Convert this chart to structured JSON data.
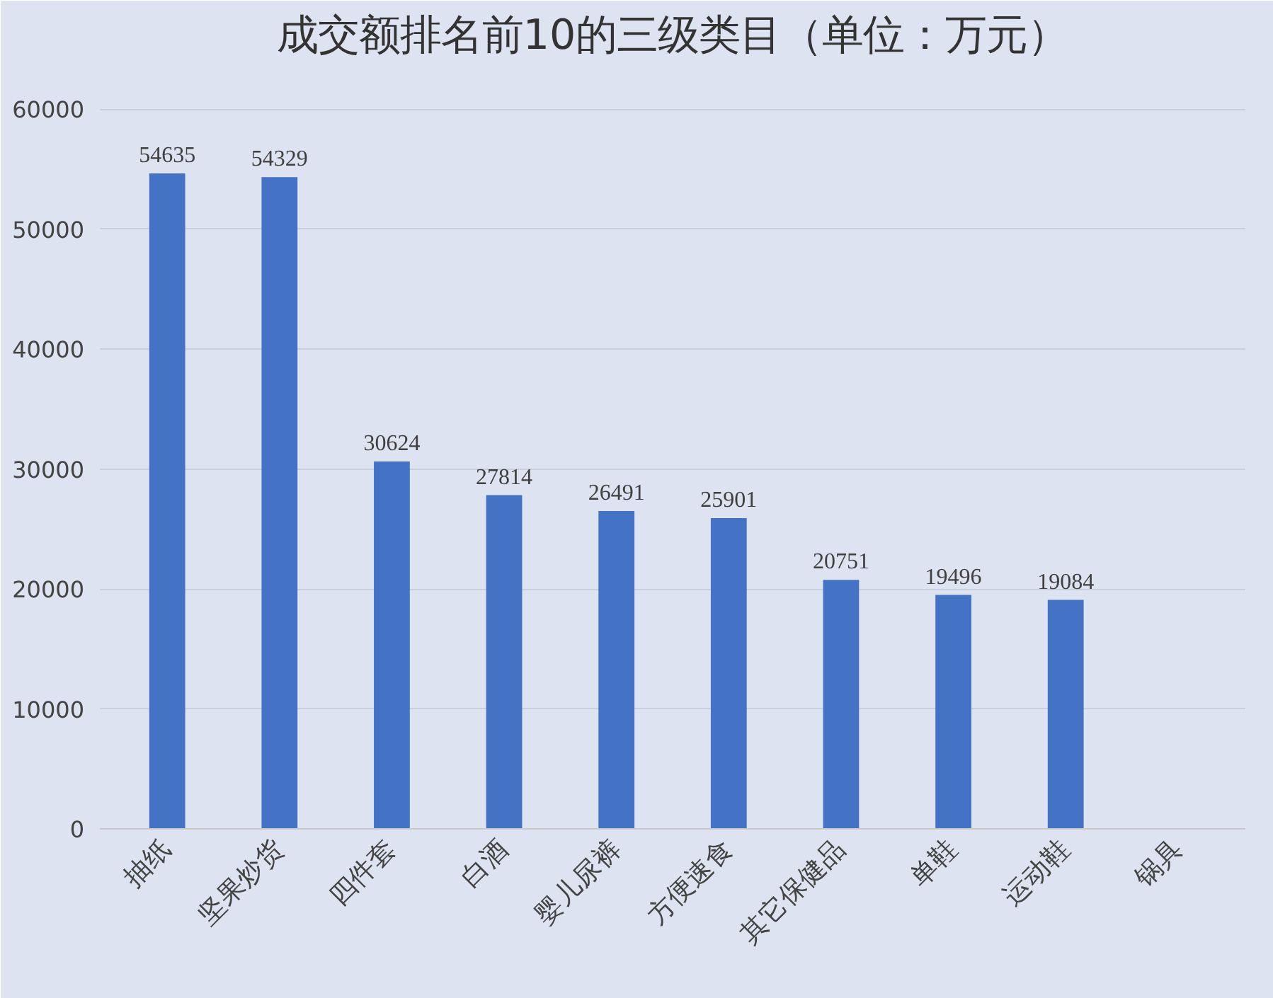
{
  "chart_data": {
    "type": "bar",
    "title": "成交额排名前10的三级类目（单位：万元）",
    "categories": [
      "抽纸",
      "坚果炒货",
      "四件套",
      "白酒",
      "婴儿尿裤",
      "方便速食",
      "其它保健品",
      "单鞋",
      "运动鞋",
      "锅具"
    ],
    "values": [
      54635,
      54329,
      30624,
      27814,
      26491,
      25901,
      20751,
      19496,
      19084,
      null
    ],
    "color": "#4472c4",
    "ylim": [
      0,
      60000
    ],
    "yticks": [
      0,
      10000,
      20000,
      30000,
      40000,
      50000,
      60000
    ],
    "grid": "y",
    "data_labels": true
  }
}
